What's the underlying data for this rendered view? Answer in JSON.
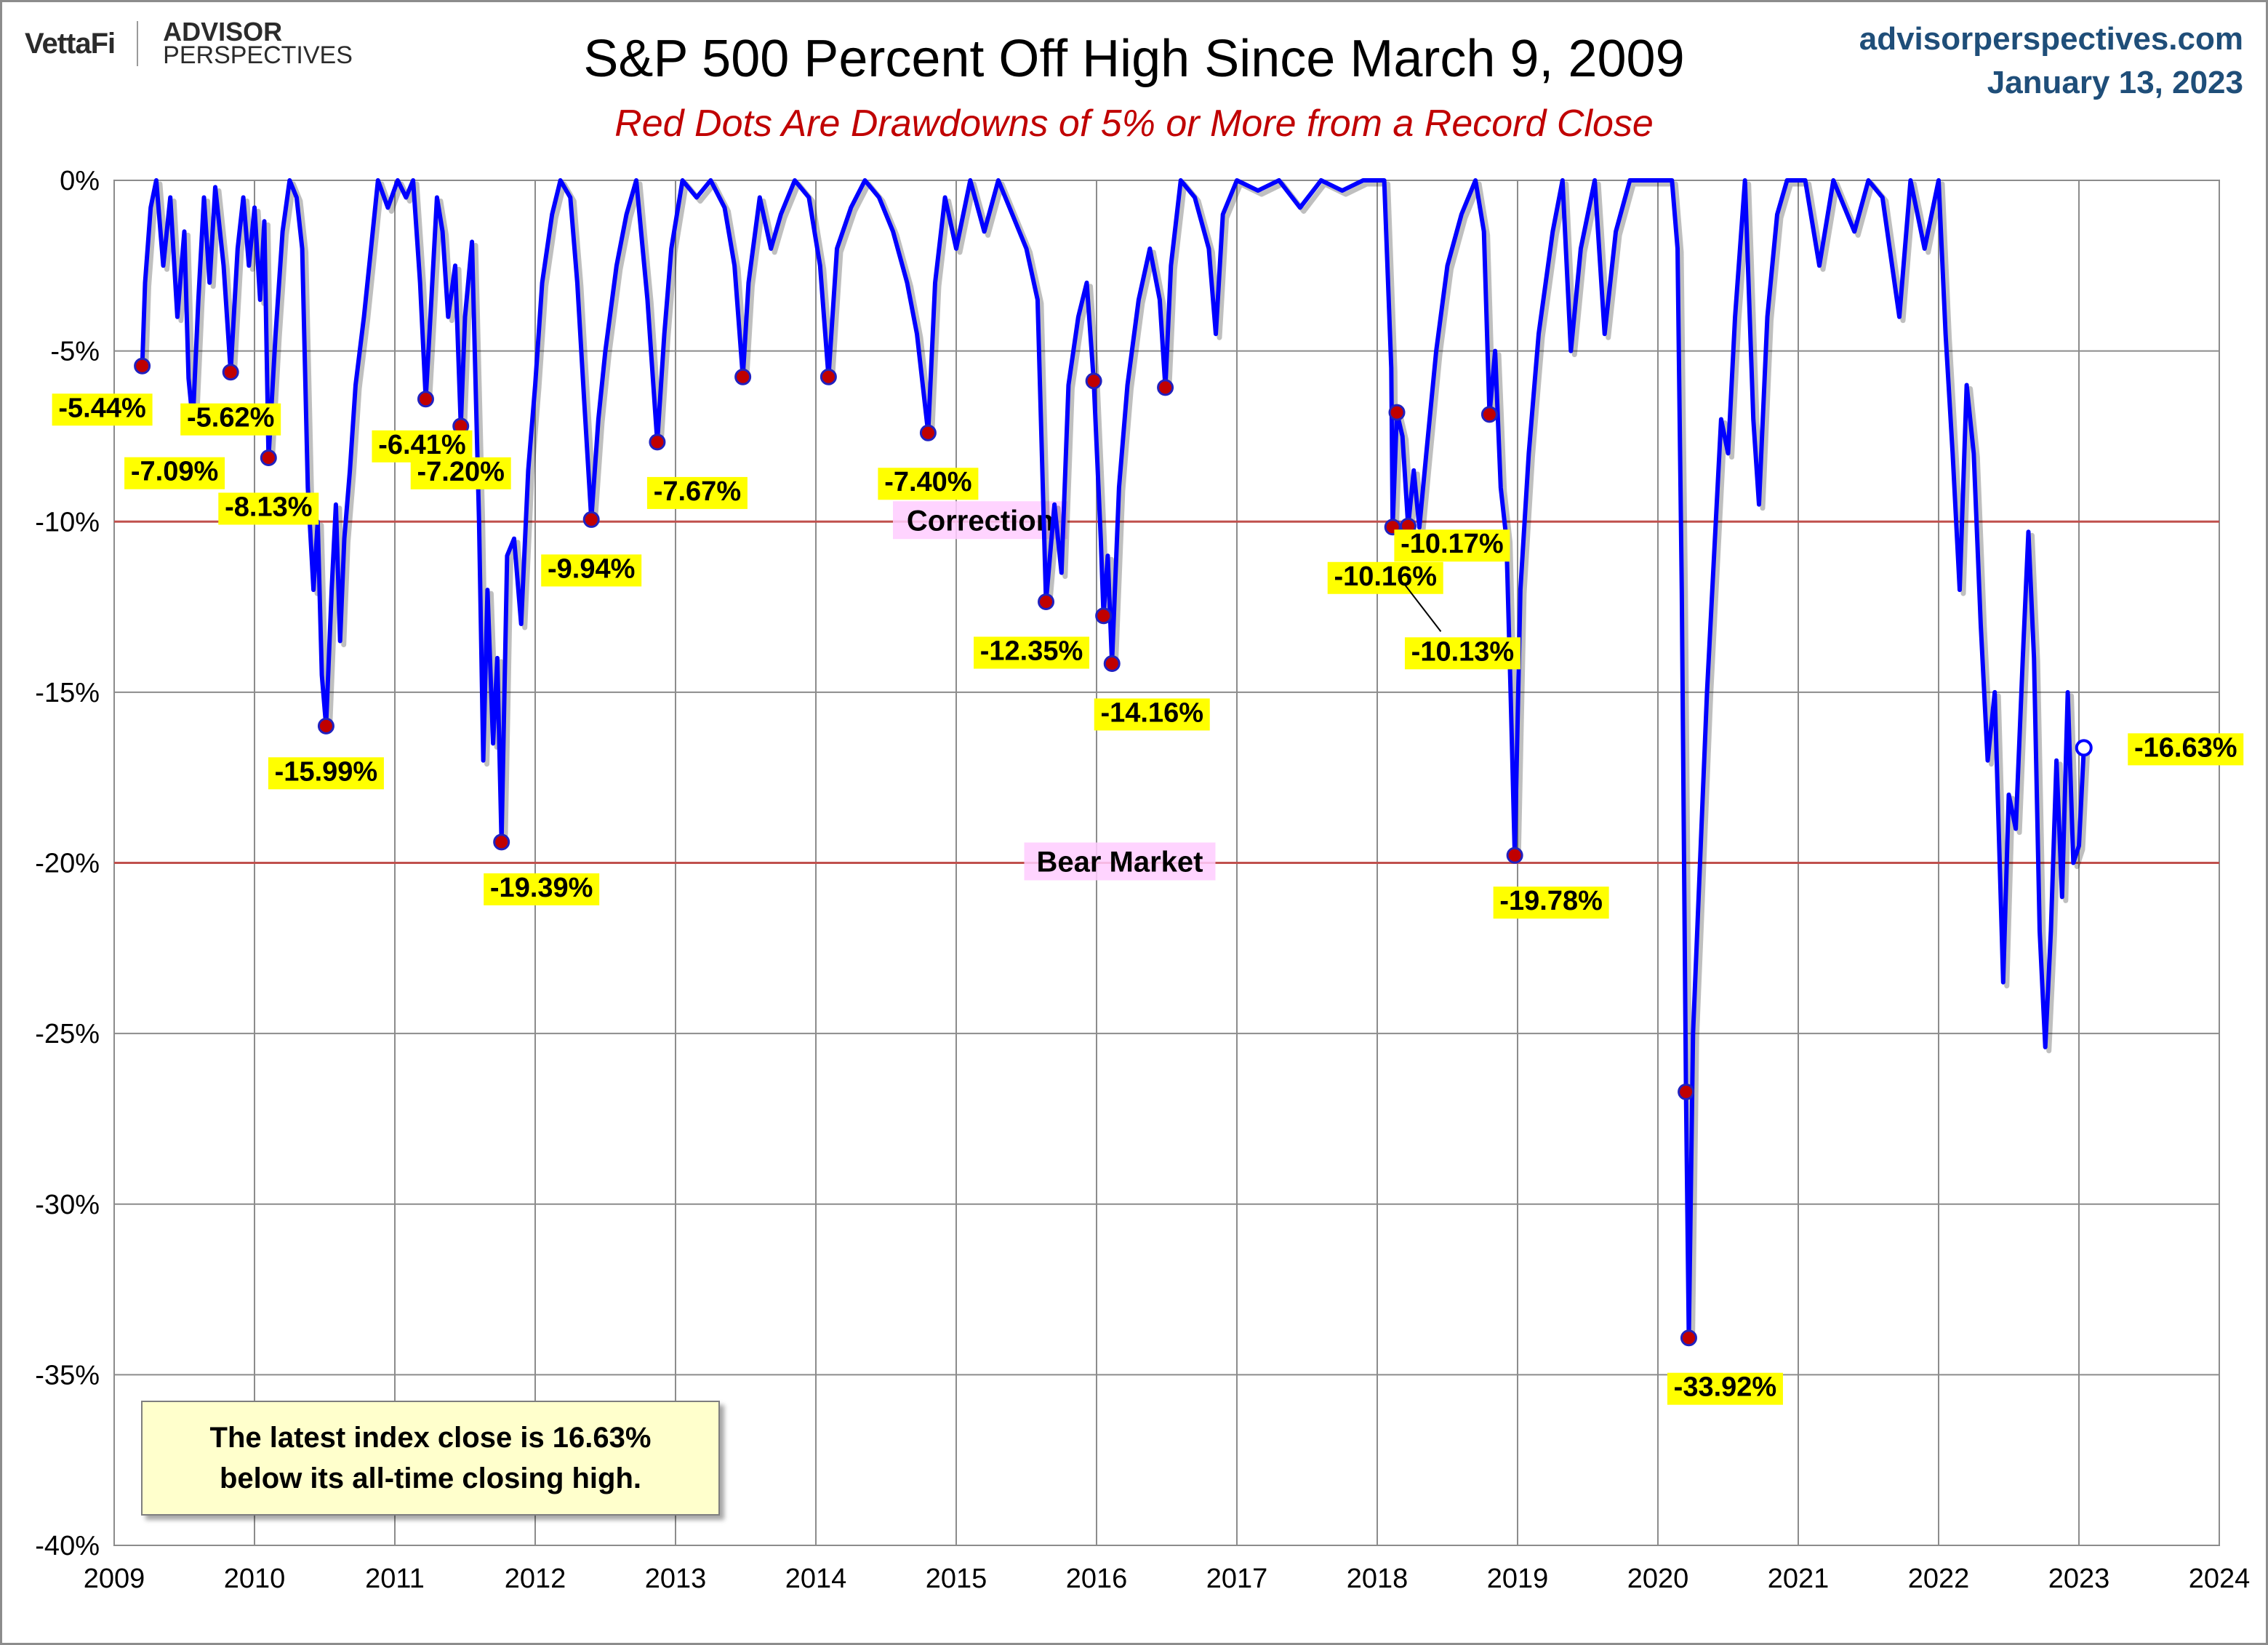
{
  "header": {
    "logo_left": "VettaFi",
    "logo_right_top": "ADVISOR",
    "logo_right_bottom": "PERSPECTIVES",
    "site": "advisorperspectives.com",
    "date": "January 13, 2023"
  },
  "chart_data": {
    "type": "line",
    "title": "S&P 500 Percent Off High Since March 9, 2009",
    "subtitle": "Red Dots Are Drawdowns of 5% or More from a Record Close",
    "xlim": [
      2009,
      2024
    ],
    "ylim": [
      -40,
      0
    ],
    "x_ticks": [
      "2009",
      "2010",
      "2011",
      "2012",
      "2013",
      "2014",
      "2015",
      "2016",
      "2017",
      "2018",
      "2019",
      "2020",
      "2021",
      "2022",
      "2023",
      "2024"
    ],
    "y_ticks": [
      {
        "value": 0,
        "label": "0%"
      },
      {
        "value": -5,
        "label": "-5%"
      },
      {
        "value": -10,
        "label": "-10%"
      },
      {
        "value": -15,
        "label": "-15%"
      },
      {
        "value": -20,
        "label": "-20%"
      },
      {
        "value": -25,
        "label": "-25%"
      },
      {
        "value": -30,
        "label": "-30%"
      },
      {
        "value": -35,
        "label": "-35%"
      },
      {
        "value": -40,
        "label": "-40%"
      }
    ],
    "grid": true,
    "line_color": "#0000ff",
    "reference_lines": [
      {
        "value": -10,
        "label": "Correction",
        "color": "#c0504d"
      },
      {
        "value": -20,
        "label": "Bear Market",
        "color": "#c0504d"
      }
    ],
    "series": [
      {
        "points": [
          [
            2009.2,
            -5.44
          ],
          [
            2009.22,
            -3.0
          ],
          [
            2009.26,
            -0.8
          ],
          [
            2009.3,
            0
          ],
          [
            2009.35,
            -2.5
          ],
          [
            2009.4,
            -0.5
          ],
          [
            2009.45,
            -4.0
          ],
          [
            2009.5,
            -1.5
          ],
          [
            2009.53,
            -5.8
          ],
          [
            2009.56,
            -7.09
          ],
          [
            2009.6,
            -3.5
          ],
          [
            2009.64,
            -0.5
          ],
          [
            2009.68,
            -3.0
          ],
          [
            2009.72,
            -0.2
          ],
          [
            2009.78,
            -2.5
          ],
          [
            2009.83,
            -5.62
          ],
          [
            2009.88,
            -2.0
          ],
          [
            2009.92,
            -0.5
          ],
          [
            2009.96,
            -2.5
          ],
          [
            2010.0,
            -0.8
          ],
          [
            2010.04,
            -3.5
          ],
          [
            2010.07,
            -1.2
          ],
          [
            2010.1,
            -8.13
          ],
          [
            2010.15,
            -4.5
          ],
          [
            2010.2,
            -1.5
          ],
          [
            2010.25,
            0
          ],
          [
            2010.3,
            -0.5
          ],
          [
            2010.34,
            -2.0
          ],
          [
            2010.38,
            -9.0
          ],
          [
            2010.42,
            -12.0
          ],
          [
            2010.45,
            -10.0
          ],
          [
            2010.48,
            -14.5
          ],
          [
            2010.51,
            -15.99
          ],
          [
            2010.55,
            -12.0
          ],
          [
            2010.58,
            -9.5
          ],
          [
            2010.61,
            -13.5
          ],
          [
            2010.64,
            -10.5
          ],
          [
            2010.68,
            -8.5
          ],
          [
            2010.72,
            -6.0
          ],
          [
            2010.78,
            -4.0
          ],
          [
            2010.83,
            -2.0
          ],
          [
            2010.88,
            0
          ],
          [
            2010.95,
            -0.8
          ],
          [
            2011.02,
            0
          ],
          [
            2011.08,
            -0.5
          ],
          [
            2011.13,
            0
          ],
          [
            2011.18,
            -3.0
          ],
          [
            2011.22,
            -6.41
          ],
          [
            2011.26,
            -3.5
          ],
          [
            2011.3,
            -0.5
          ],
          [
            2011.34,
            -1.5
          ],
          [
            2011.38,
            -4.0
          ],
          [
            2011.43,
            -2.5
          ],
          [
            2011.47,
            -7.2
          ],
          [
            2011.5,
            -4.0
          ],
          [
            2011.55,
            -1.8
          ],
          [
            2011.6,
            -10.0
          ],
          [
            2011.63,
            -17.0
          ],
          [
            2011.66,
            -12.0
          ],
          [
            2011.7,
            -16.5
          ],
          [
            2011.73,
            -14.0
          ],
          [
            2011.76,
            -19.39
          ],
          [
            2011.8,
            -11.0
          ],
          [
            2011.85,
            -10.5
          ],
          [
            2011.9,
            -13.0
          ],
          [
            2011.95,
            -8.5
          ],
          [
            2012.0,
            -6.0
          ],
          [
            2012.05,
            -3.0
          ],
          [
            2012.12,
            -1.0
          ],
          [
            2012.18,
            0
          ],
          [
            2012.25,
            -0.5
          ],
          [
            2012.3,
            -3.0
          ],
          [
            2012.35,
            -6.5
          ],
          [
            2012.4,
            -9.94
          ],
          [
            2012.45,
            -7.0
          ],
          [
            2012.5,
            -5.0
          ],
          [
            2012.58,
            -2.5
          ],
          [
            2012.65,
            -1.0
          ],
          [
            2012.72,
            0
          ],
          [
            2012.8,
            -3.5
          ],
          [
            2012.87,
            -7.67
          ],
          [
            2012.92,
            -4.5
          ],
          [
            2012.97,
            -2.0
          ],
          [
            2013.05,
            0
          ],
          [
            2013.15,
            -0.5
          ],
          [
            2013.25,
            0
          ],
          [
            2013.35,
            -0.8
          ],
          [
            2013.42,
            -2.5
          ],
          [
            2013.48,
            -5.76
          ],
          [
            2013.52,
            -3.0
          ],
          [
            2013.6,
            -0.5
          ],
          [
            2013.68,
            -2.0
          ],
          [
            2013.75,
            -1.0
          ],
          [
            2013.85,
            0
          ],
          [
            2013.95,
            -0.5
          ],
          [
            2014.03,
            -2.5
          ],
          [
            2014.09,
            -5.76
          ],
          [
            2014.15,
            -2.0
          ],
          [
            2014.25,
            -0.8
          ],
          [
            2014.35,
            0
          ],
          [
            2014.45,
            -0.5
          ],
          [
            2014.55,
            -1.5
          ],
          [
            2014.65,
            -3.0
          ],
          [
            2014.72,
            -4.5
          ],
          [
            2014.8,
            -7.4
          ],
          [
            2014.85,
            -3.0
          ],
          [
            2014.92,
            -0.5
          ],
          [
            2015.0,
            -2.0
          ],
          [
            2015.1,
            0
          ],
          [
            2015.2,
            -1.5
          ],
          [
            2015.3,
            0
          ],
          [
            2015.4,
            -1.0
          ],
          [
            2015.5,
            -2.0
          ],
          [
            2015.58,
            -3.5
          ],
          [
            2015.64,
            -12.35
          ],
          [
            2015.7,
            -9.5
          ],
          [
            2015.75,
            -11.5
          ],
          [
            2015.8,
            -6.0
          ],
          [
            2015.87,
            -4.0
          ],
          [
            2015.93,
            -3.0
          ],
          [
            2015.98,
            -5.88
          ],
          [
            2016.03,
            -10.5
          ],
          [
            2016.05,
            -12.76
          ],
          [
            2016.08,
            -11.0
          ],
          [
            2016.11,
            -14.16
          ],
          [
            2016.16,
            -9.0
          ],
          [
            2016.22,
            -6.0
          ],
          [
            2016.3,
            -3.5
          ],
          [
            2016.38,
            -2.0
          ],
          [
            2016.45,
            -3.5
          ],
          [
            2016.49,
            -6.07
          ],
          [
            2016.53,
            -2.5
          ],
          [
            2016.6,
            0
          ],
          [
            2016.7,
            -0.5
          ],
          [
            2016.8,
            -2.0
          ],
          [
            2016.85,
            -4.5
          ],
          [
            2016.9,
            -1.0
          ],
          [
            2017.0,
            0
          ],
          [
            2017.15,
            -0.3
          ],
          [
            2017.3,
            0
          ],
          [
            2017.45,
            -0.8
          ],
          [
            2017.6,
            0
          ],
          [
            2017.75,
            -0.3
          ],
          [
            2017.9,
            0
          ],
          [
            2018.05,
            0
          ],
          [
            2018.1,
            -5.5
          ],
          [
            2018.11,
            -10.16
          ],
          [
            2018.14,
            -6.8
          ],
          [
            2018.18,
            -7.5
          ],
          [
            2018.22,
            -10.13
          ],
          [
            2018.26,
            -8.5
          ],
          [
            2018.3,
            -10.17
          ],
          [
            2018.35,
            -8.0
          ],
          [
            2018.42,
            -5.0
          ],
          [
            2018.5,
            -2.5
          ],
          [
            2018.6,
            -1.0
          ],
          [
            2018.7,
            0
          ],
          [
            2018.76,
            -1.5
          ],
          [
            2018.8,
            -6.86
          ],
          [
            2018.84,
            -5.0
          ],
          [
            2018.88,
            -9.0
          ],
          [
            2018.92,
            -10.5
          ],
          [
            2018.95,
            -15.0
          ],
          [
            2018.98,
            -19.78
          ],
          [
            2019.02,
            -12.0
          ],
          [
            2019.08,
            -8.0
          ],
          [
            2019.15,
            -4.5
          ],
          [
            2019.25,
            -1.5
          ],
          [
            2019.32,
            0
          ],
          [
            2019.38,
            -5.0
          ],
          [
            2019.45,
            -2.0
          ],
          [
            2019.55,
            0
          ],
          [
            2019.62,
            -4.5
          ],
          [
            2019.7,
            -1.5
          ],
          [
            2019.8,
            0
          ],
          [
            2019.95,
            0
          ],
          [
            2020.1,
            0
          ],
          [
            2020.14,
            -2.0
          ],
          [
            2020.17,
            -12.0
          ],
          [
            2020.2,
            -26.71
          ],
          [
            2020.22,
            -33.92
          ],
          [
            2020.25,
            -25.0
          ],
          [
            2020.3,
            -20.0
          ],
          [
            2020.35,
            -15.0
          ],
          [
            2020.4,
            -11.0
          ],
          [
            2020.45,
            -7.0
          ],
          [
            2020.5,
            -8.0
          ],
          [
            2020.55,
            -4.0
          ],
          [
            2020.62,
            0
          ],
          [
            2020.68,
            -7.0
          ],
          [
            2020.72,
            -9.5
          ],
          [
            2020.78,
            -4.0
          ],
          [
            2020.85,
            -1.0
          ],
          [
            2020.92,
            0
          ],
          [
            2021.05,
            0
          ],
          [
            2021.15,
            -2.5
          ],
          [
            2021.25,
            0
          ],
          [
            2021.4,
            -1.5
          ],
          [
            2021.5,
            0
          ],
          [
            2021.6,
            -0.5
          ],
          [
            2021.72,
            -4.0
          ],
          [
            2021.8,
            0
          ],
          [
            2021.9,
            -2.0
          ],
          [
            2022.0,
            0
          ],
          [
            2022.05,
            -4.5
          ],
          [
            2022.1,
            -8.0
          ],
          [
            2022.15,
            -12.0
          ],
          [
            2022.2,
            -6.0
          ],
          [
            2022.25,
            -8.0
          ],
          [
            2022.3,
            -13.0
          ],
          [
            2022.35,
            -17.0
          ],
          [
            2022.4,
            -15.0
          ],
          [
            2022.46,
            -23.5
          ],
          [
            2022.5,
            -18.0
          ],
          [
            2022.55,
            -19.0
          ],
          [
            2022.6,
            -14.0
          ],
          [
            2022.64,
            -10.3
          ],
          [
            2022.68,
            -14.0
          ],
          [
            2022.72,
            -22.0
          ],
          [
            2022.76,
            -25.4
          ],
          [
            2022.8,
            -22.0
          ],
          [
            2022.84,
            -17.0
          ],
          [
            2022.88,
            -21.0
          ],
          [
            2022.92,
            -15.0
          ],
          [
            2022.96,
            -20.0
          ],
          [
            2023.0,
            -19.5
          ],
          [
            2023.035,
            -16.63
          ]
        ]
      }
    ],
    "drawdowns": [
      {
        "x": 2009.2,
        "y": -5.44,
        "label": "-5.44%"
      },
      {
        "x": 2009.56,
        "y": -7.09,
        "label": "-7.09%"
      },
      {
        "x": 2009.83,
        "y": -5.62,
        "label": "-5.62%"
      },
      {
        "x": 2010.1,
        "y": -8.13,
        "label": "-8.13%"
      },
      {
        "x": 2010.51,
        "y": -15.99,
        "label": "-15.99%"
      },
      {
        "x": 2011.22,
        "y": -6.41,
        "label": "-6.41%"
      },
      {
        "x": 2011.47,
        "y": -7.2,
        "label": "-7.20%"
      },
      {
        "x": 2011.76,
        "y": -19.39,
        "label": "-19.39%"
      },
      {
        "x": 2012.4,
        "y": -9.94,
        "label": "-9.94%"
      },
      {
        "x": 2012.87,
        "y": -7.67,
        "label": "-7.67%"
      },
      {
        "x": 2013.48,
        "y": -5.76
      },
      {
        "x": 2014.09,
        "y": -5.76
      },
      {
        "x": 2014.8,
        "y": -7.4,
        "label": "-7.40%"
      },
      {
        "x": 2015.64,
        "y": -12.35,
        "label": "-12.35%"
      },
      {
        "x": 2015.98,
        "y": -5.88
      },
      {
        "x": 2016.05,
        "y": -12.76
      },
      {
        "x": 2016.11,
        "y": -14.16,
        "label": "-14.16%"
      },
      {
        "x": 2016.49,
        "y": -6.07
      },
      {
        "x": 2018.11,
        "y": -10.16,
        "label": "-10.16%"
      },
      {
        "x": 2018.14,
        "y": -6.8
      },
      {
        "x": 2018.22,
        "y": -10.13,
        "label": "-10.13%"
      },
      {
        "x": 2018.8,
        "y": -6.86
      },
      {
        "x": 2018.98,
        "y": -19.78,
        "label": "-19.78%"
      },
      {
        "x": 2020.2,
        "y": -26.71
      },
      {
        "x": 2020.22,
        "y": -33.92,
        "label": "-33.92%"
      }
    ],
    "extra_labels": [
      {
        "x": 2018.3,
        "y": -10.17,
        "label": "-10.17%"
      }
    ],
    "latest": {
      "x": 2023.035,
      "y": -16.63,
      "label": "-16.63%"
    }
  },
  "note": {
    "line1": "The latest index close is 16.63%",
    "line2": "below its all-time closing high."
  }
}
